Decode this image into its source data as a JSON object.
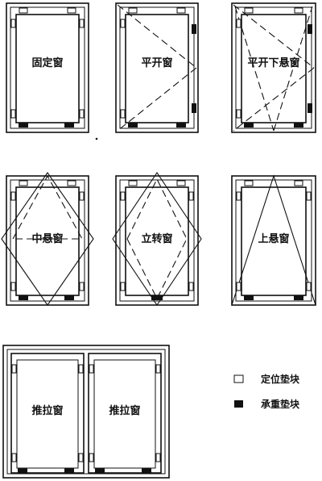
{
  "windows": [
    {
      "label": "固定窗"
    },
    {
      "label": "平开窗"
    },
    {
      "label": "平开下悬窗"
    },
    {
      "label": "中悬窗"
    },
    {
      "label": "立转窗"
    },
    {
      "label": "上悬窗"
    },
    {
      "label": "推拉窗"
    },
    {
      "label": "推拉窗"
    }
  ],
  "legend": {
    "positioning_block": "定位垫块",
    "bearing_block": "承重垫块"
  }
}
